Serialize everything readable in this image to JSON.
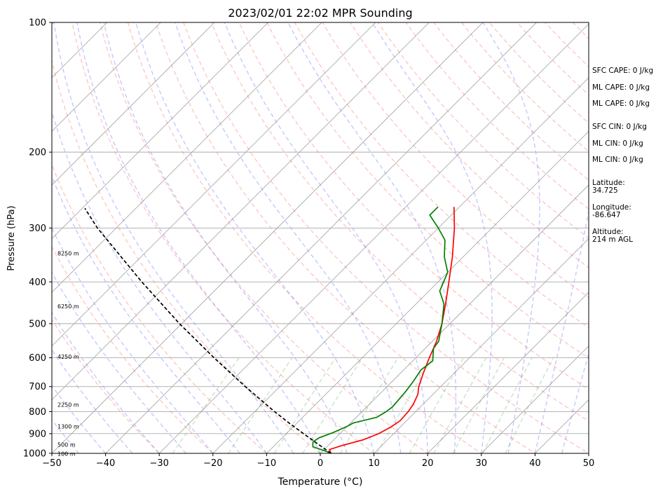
{
  "chart_data": {
    "type": "line",
    "title": "2023/02/01 22:02 MPR Sounding",
    "xlabel": "Temperature (°C)",
    "ylabel": "Pressure (hPa)",
    "xlim": [
      -50,
      50
    ],
    "ylim": [
      1000,
      100
    ],
    "y_scale": "log",
    "x_ticks": [
      "−50",
      "−40",
      "−30",
      "−20",
      "−10",
      "0",
      "10",
      "20",
      "30",
      "40",
      "50"
    ],
    "y_ticks": [
      "100",
      "200",
      "300",
      "400",
      "500",
      "600",
      "700",
      "800",
      "900",
      "1000"
    ],
    "grid": true,
    "height_labels": [
      "100 m",
      "500 m",
      "1300 m",
      "2250 m",
      "4250 m",
      "6250 m",
      "8250 m"
    ],
    "series": [
      {
        "role": "temperature",
        "color": "#ff0000",
        "points": [
          {
            "p": 1000,
            "t": 2.0
          },
          {
            "p": 980,
            "t": 1.0
          },
          {
            "p": 960,
            "t": 2.5
          },
          {
            "p": 930,
            "t": 5.5
          },
          {
            "p": 900,
            "t": 7.2
          },
          {
            "p": 870,
            "t": 8.2
          },
          {
            "p": 840,
            "t": 8.8
          },
          {
            "p": 800,
            "t": 8.6
          },
          {
            "p": 770,
            "t": 8.2
          },
          {
            "p": 730,
            "t": 7.2
          },
          {
            "p": 700,
            "t": 5.9
          },
          {
            "p": 650,
            "t": 4.2
          },
          {
            "p": 600,
            "t": 2.5
          },
          {
            "p": 550,
            "t": 0.8
          },
          {
            "p": 500,
            "t": -1.5
          },
          {
            "p": 450,
            "t": -4.5
          },
          {
            "p": 400,
            "t": -8.0
          },
          {
            "p": 350,
            "t": -12.0
          },
          {
            "p": 300,
            "t": -17.0
          },
          {
            "p": 268,
            "t": -21.0
          }
        ]
      },
      {
        "role": "dewpoint",
        "color": "#008000",
        "points": [
          {
            "p": 1000,
            "t": 2.0
          },
          {
            "p": 990,
            "t": 0.8
          },
          {
            "p": 965,
            "t": -2.6
          },
          {
            "p": 955,
            "t": -3.0
          },
          {
            "p": 940,
            "t": -3.5
          },
          {
            "p": 920,
            "t": -3.1
          },
          {
            "p": 895,
            "t": -1.5
          },
          {
            "p": 865,
            "t": 0.0
          },
          {
            "p": 850,
            "t": 0.5
          },
          {
            "p": 825,
            "t": 3.8
          },
          {
            "p": 800,
            "t": 4.5
          },
          {
            "p": 780,
            "t": 4.8
          },
          {
            "p": 720,
            "t": 4.4
          },
          {
            "p": 680,
            "t": 3.9
          },
          {
            "p": 640,
            "t": 3.2
          },
          {
            "p": 610,
            "t": 3.7
          },
          {
            "p": 570,
            "t": 1.5
          },
          {
            "p": 550,
            "t": 1.2
          },
          {
            "p": 500,
            "t": -1.5
          },
          {
            "p": 450,
            "t": -4.8
          },
          {
            "p": 420,
            "t": -8.0
          },
          {
            "p": 380,
            "t": -10.0
          },
          {
            "p": 350,
            "t": -13.5
          },
          {
            "p": 320,
            "t": -16.5
          },
          {
            "p": 300,
            "t": -20.0
          },
          {
            "p": 280,
            "t": -24.0
          },
          {
            "p": 268,
            "t": -24.0
          }
        ]
      },
      {
        "role": "parcel",
        "color": "#000000",
        "style": "dashed",
        "points": [
          {
            "p": 1000,
            "t": 2.0
          },
          {
            "p": 950,
            "t": -2.3
          },
          {
            "p": 900,
            "t": -6.8
          },
          {
            "p": 850,
            "t": -11.5
          },
          {
            "p": 800,
            "t": -16.3
          },
          {
            "p": 700,
            "t": -26.4
          },
          {
            "p": 600,
            "t": -37.6
          },
          {
            "p": 500,
            "t": -50.4
          },
          {
            "p": 400,
            "t": -65.2
          },
          {
            "p": 300,
            "t": -83.5
          },
          {
            "p": 270,
            "t": -89.5
          }
        ]
      }
    ]
  },
  "indices": {
    "sfc_cape": "SFC CAPE: 0 J/kg",
    "ml_cape_1": "ML CAPE: 0 J/kg",
    "ml_cape_2": "ML CAPE: 0 J/kg",
    "sfc_cin": "SFC CIN: 0 J/kg",
    "ml_cin_1": "ML CIN: 0 J/kg",
    "ml_cin_2": "ML CIN: 0 J/kg"
  },
  "location": {
    "latitude_label": "Latitude:",
    "latitude_value": "34.725",
    "longitude_label": "Longitude:",
    "longitude_value": "-86.647",
    "altitude_label": "Altitude:",
    "altitude_value": "214 m AGL"
  }
}
